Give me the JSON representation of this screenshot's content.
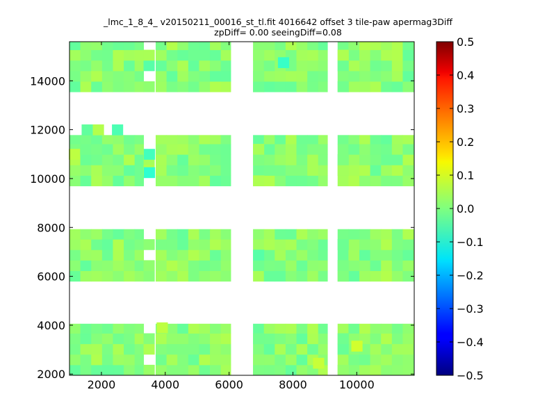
{
  "chart_data": {
    "type": "heatmap",
    "title": "_lmc_1_8_4_ v20150211_00016_st_tl.fit 4016642 offset 3 tile-paw apermag3Diff",
    "subtitle": "zpDiff= 0.00 seeingDiff=0.08",
    "xlabel": "",
    "ylabel": "",
    "xlim": [
      1000,
      11800
    ],
    "ylim": [
      1950,
      15600
    ],
    "xticks": [
      2000,
      4000,
      6000,
      8000,
      10000
    ],
    "yticks": [
      2000,
      4000,
      6000,
      8000,
      10000,
      12000,
      14000
    ],
    "grid": false,
    "colorbar": {
      "colormap": "jet",
      "range": [
        -0.5,
        0.5
      ],
      "ticks": [
        0.5,
        0.4,
        0.3,
        0.2,
        0.1,
        0.0,
        -0.1,
        -0.2,
        -0.3,
        -0.4,
        -0.5
      ],
      "tick_labels": [
        "0.5",
        "0.4",
        "0.3",
        "0.2",
        "0.1",
        "0.0",
        "−0.1",
        "−0.2",
        "−0.3",
        "−0.4",
        "−0.5"
      ]
    },
    "cell_size": [
      340,
      430
    ],
    "value_range_shown": [
      -0.08,
      0.08
    ],
    "column_groups": [
      {
        "x_range": [
          1000,
          3320
        ],
        "partial_x_range": [
          3320,
          3660
        ]
      },
      {
        "x_range": [
          3700,
          6050
        ]
      },
      {
        "x_range": [
          6750,
          9080
        ],
        "partial_x_range": [
          6750,
          7090
        ]
      },
      {
        "x_range": [
          9400,
          11800
        ],
        "partial_x_range": [
          9400,
          9740
        ]
      }
    ],
    "row_groups": [
      {
        "y_range": [
          13550,
          15600
        ]
      },
      {
        "y_range": [
          9700,
          11780
        ]
      },
      {
        "y_range": [
          5800,
          7930
        ]
      },
      {
        "y_range": [
          1950,
          4060
        ]
      }
    ],
    "isolated_cells": [
      {
        "x": 1550,
        "y": 12000,
        "value": -0.03
      },
      {
        "x": 1900,
        "y": 12000,
        "value": 0.05
      },
      {
        "x": 2500,
        "y": 12000,
        "value": -0.05
      }
    ],
    "notable_cells": [
      {
        "x": 3500,
        "y": 10250,
        "value": -0.08
      },
      {
        "x": 3500,
        "y": 11000,
        "value": -0.06
      },
      {
        "x": 7700,
        "y": 14750,
        "value": -0.07
      },
      {
        "x": 3900,
        "y": 3900,
        "value": 0.06
      },
      {
        "x": 8800,
        "y": 2450,
        "value": 0.07
      },
      {
        "x": 10000,
        "y": 3150,
        "value": 0.08
      },
      {
        "x": 1150,
        "y": 11000,
        "value": 0.06
      }
    ]
  }
}
